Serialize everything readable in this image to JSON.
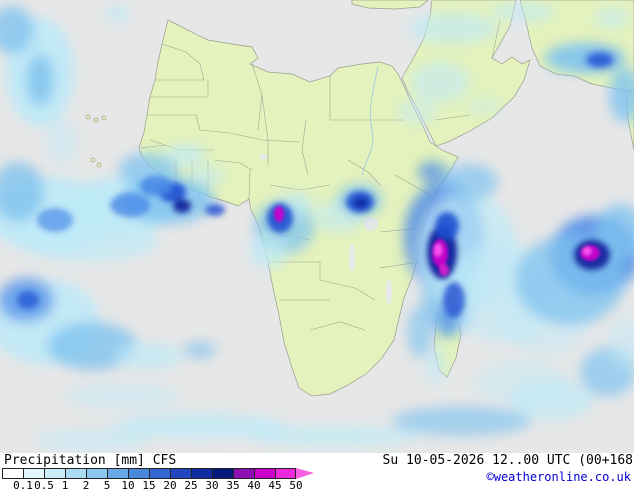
{
  "footer": {
    "title": "Precipitation [mm] CFS",
    "datetime": "Su 10-05-2026 12..00 UTC (00+168",
    "copyright": "©weatheronline.co.uk"
  },
  "legend": {
    "unit": "mm",
    "ticks": [
      "0.1",
      "0.5",
      "1",
      "2",
      "5",
      "10",
      "15",
      "20",
      "25",
      "30",
      "35",
      "40",
      "45",
      "50"
    ],
    "colors": [
      "#ffffff",
      "#e2f6fb",
      "#c9ecf8",
      "#abdcf4",
      "#8ac6ee",
      "#68a8e6",
      "#4a88dc",
      "#3366d0",
      "#2146be",
      "#122ca4",
      "#061a7e",
      "#8c10b4",
      "#cc00cc",
      "#ee28dc"
    ],
    "arrow_color": "#f861e2"
  },
  "map": {
    "ocean_color": "#e7e7e7",
    "land_color": "#e4f2bd",
    "border_color": "#9b9b8d",
    "precip_palette": {
      "light": "#bfe9f7",
      "medium": "#7fc3ef",
      "blue": "#4a8ae8",
      "dark_blue": "#2050d0",
      "navy": "#0a1f9a",
      "magenta": "#cc00cc",
      "pink": "#ff55f2"
    }
  }
}
